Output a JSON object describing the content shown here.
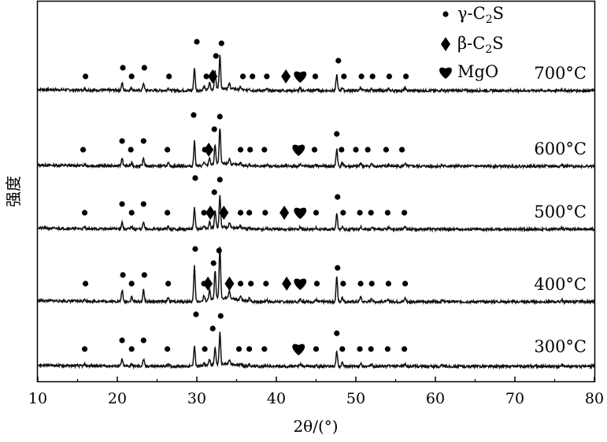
{
  "chart_data": {
    "type": "line",
    "xlabel": "2θ/(°)",
    "ylabel": "强度",
    "xlim": [
      10,
      80
    ],
    "xticks": [
      10,
      20,
      30,
      40,
      50,
      60,
      70,
      80
    ],
    "grid": false,
    "legend_position": "top-right",
    "legend": [
      {
        "label": "γ-C2S",
        "label_main": "γ-C",
        "label_sub": "2",
        "label_tail": "S",
        "marker": "circle"
      },
      {
        "label": "β-C2S",
        "label_main": "β-C",
        "label_sub": "2",
        "label_tail": "S",
        "marker": "diamond"
      },
      {
        "label": "MgO",
        "label_main": "MgO",
        "label_sub": "",
        "label_tail": "",
        "marker": "heart"
      }
    ],
    "peaks": [
      {
        "pos": 15.9,
        "h": 0.05
      },
      {
        "pos": 20.6,
        "h": 0.22
      },
      {
        "pos": 21.8,
        "h": 0.08
      },
      {
        "pos": 23.3,
        "h": 0.22
      },
      {
        "pos": 26.4,
        "h": 0.08
      },
      {
        "pos": 29.7,
        "h": 0.68
      },
      {
        "pos": 30.9,
        "h": 0.1
      },
      {
        "pos": 31.6,
        "h": 0.2
      },
      {
        "pos": 32.3,
        "h": 0.55
      },
      {
        "pos": 32.9,
        "h": 1.0
      },
      {
        "pos": 34.1,
        "h": 0.15
      },
      {
        "pos": 35.5,
        "h": 0.08
      },
      {
        "pos": 36.6,
        "h": 0.06
      },
      {
        "pos": 38.8,
        "h": 0.04
      },
      {
        "pos": 43.0,
        "h": 0.07
      },
      {
        "pos": 45.0,
        "h": 0.04
      },
      {
        "pos": 47.6,
        "h": 0.48
      },
      {
        "pos": 48.3,
        "h": 0.1
      },
      {
        "pos": 50.6,
        "h": 0.1
      },
      {
        "pos": 52.0,
        "h": 0.07
      },
      {
        "pos": 54.1,
        "h": 0.05
      },
      {
        "pos": 56.2,
        "h": 0.08
      },
      {
        "pos": 60.8,
        "h": 0.03
      },
      {
        "pos": 75.9,
        "h": 0.04
      }
    ],
    "series": [
      {
        "name": "700°C",
        "amp": 42,
        "seed": 7,
        "markers": [
          {
            "type": "circle",
            "x": 16.0
          },
          {
            "type": "circle",
            "x": 20.7
          },
          {
            "type": "circle",
            "x": 21.8
          },
          {
            "type": "circle",
            "x": 23.4
          },
          {
            "type": "circle",
            "x": 26.5
          },
          {
            "type": "circle",
            "x": 30.0
          },
          {
            "type": "circle",
            "x": 31.2
          },
          {
            "type": "diamond",
            "x": 32.0
          },
          {
            "type": "circle",
            "x": 32.4
          },
          {
            "type": "circle",
            "x": 33.1
          },
          {
            "type": "circle",
            "x": 35.8
          },
          {
            "type": "circle",
            "x": 37.0
          },
          {
            "type": "circle",
            "x": 38.8
          },
          {
            "type": "diamond",
            "x": 41.2
          },
          {
            "type": "heart",
            "x": 43.0
          },
          {
            "type": "circle",
            "x": 44.9
          },
          {
            "type": "circle",
            "x": 47.8
          },
          {
            "type": "circle",
            "x": 48.5
          },
          {
            "type": "circle",
            "x": 50.7
          },
          {
            "type": "circle",
            "x": 52.1
          },
          {
            "type": "circle",
            "x": 54.2
          },
          {
            "type": "circle",
            "x": 56.3
          }
        ]
      },
      {
        "name": "600°C",
        "amp": 46,
        "seed": 13,
        "markers": [
          {
            "type": "circle",
            "x": 15.7
          },
          {
            "type": "circle",
            "x": 20.6
          },
          {
            "type": "circle",
            "x": 21.7
          },
          {
            "type": "circle",
            "x": 23.3
          },
          {
            "type": "circle",
            "x": 26.3
          },
          {
            "type": "circle",
            "x": 29.6
          },
          {
            "type": "circle",
            "x": 31.0
          },
          {
            "type": "diamond",
            "x": 31.5
          },
          {
            "type": "circle",
            "x": 32.2
          },
          {
            "type": "circle",
            "x": 32.9
          },
          {
            "type": "circle",
            "x": 35.5
          },
          {
            "type": "circle",
            "x": 36.7
          },
          {
            "type": "circle",
            "x": 38.5
          },
          {
            "type": "heart",
            "x": 42.8
          },
          {
            "type": "circle",
            "x": 44.8
          },
          {
            "type": "circle",
            "x": 47.6
          },
          {
            "type": "circle",
            "x": 48.2
          },
          {
            "type": "circle",
            "x": 50.0
          },
          {
            "type": "circle",
            "x": 51.5
          },
          {
            "type": "circle",
            "x": 53.8
          },
          {
            "type": "circle",
            "x": 55.8
          }
        ]
      },
      {
        "name": "500°C",
        "amp": 40,
        "seed": 21,
        "markers": [
          {
            "type": "circle",
            "x": 15.9
          },
          {
            "type": "circle",
            "x": 20.6
          },
          {
            "type": "circle",
            "x": 21.8
          },
          {
            "type": "circle",
            "x": 23.3
          },
          {
            "type": "circle",
            "x": 26.3
          },
          {
            "type": "circle",
            "x": 29.8
          },
          {
            "type": "circle",
            "x": 30.9
          },
          {
            "type": "diamond",
            "x": 31.7
          },
          {
            "type": "circle",
            "x": 32.2
          },
          {
            "type": "circle",
            "x": 32.9
          },
          {
            "type": "diamond",
            "x": 33.4
          },
          {
            "type": "circle",
            "x": 35.5
          },
          {
            "type": "circle",
            "x": 36.6
          },
          {
            "type": "circle",
            "x": 38.6
          },
          {
            "type": "diamond",
            "x": 41.0
          },
          {
            "type": "heart",
            "x": 43.0
          },
          {
            "type": "circle",
            "x": 45.0
          },
          {
            "type": "circle",
            "x": 47.7
          },
          {
            "type": "circle",
            "x": 48.4
          },
          {
            "type": "circle",
            "x": 50.5
          },
          {
            "type": "circle",
            "x": 51.9
          },
          {
            "type": "circle",
            "x": 54.0
          },
          {
            "type": "circle",
            "x": 56.1
          }
        ]
      },
      {
        "name": "400°C",
        "amp": 66,
        "seed": 33,
        "markers": [
          {
            "type": "circle",
            "x": 16.0
          },
          {
            "type": "circle",
            "x": 20.7
          },
          {
            "type": "circle",
            "x": 21.8
          },
          {
            "type": "circle",
            "x": 23.4
          },
          {
            "type": "circle",
            "x": 26.4
          },
          {
            "type": "circle",
            "x": 29.8
          },
          {
            "type": "circle",
            "x": 30.9
          },
          {
            "type": "diamond",
            "x": 31.4
          },
          {
            "type": "circle",
            "x": 32.1
          },
          {
            "type": "circle",
            "x": 32.8
          },
          {
            "type": "diamond",
            "x": 34.1
          },
          {
            "type": "circle",
            "x": 35.5
          },
          {
            "type": "circle",
            "x": 36.8
          },
          {
            "type": "circle",
            "x": 38.7
          },
          {
            "type": "diamond",
            "x": 41.3
          },
          {
            "type": "heart",
            "x": 43.0
          },
          {
            "type": "circle",
            "x": 45.1
          },
          {
            "type": "circle",
            "x": 47.7
          },
          {
            "type": "circle",
            "x": 48.4
          },
          {
            "type": "circle",
            "x": 50.6
          },
          {
            "type": "circle",
            "x": 52.0
          },
          {
            "type": "circle",
            "x": 54.1
          },
          {
            "type": "circle",
            "x": 56.2
          }
        ]
      },
      {
        "name": "300°C",
        "amp": 40,
        "seed": 45,
        "markers": [
          {
            "type": "circle",
            "x": 15.9
          },
          {
            "type": "circle",
            "x": 20.6
          },
          {
            "type": "circle",
            "x": 21.8
          },
          {
            "type": "circle",
            "x": 23.3
          },
          {
            "type": "circle",
            "x": 26.3
          },
          {
            "type": "circle",
            "x": 29.9
          },
          {
            "type": "circle",
            "x": 31.0
          },
          {
            "type": "circle",
            "x": 32.0
          },
          {
            "type": "circle",
            "x": 33.0
          },
          {
            "type": "circle",
            "x": 35.3
          },
          {
            "type": "circle",
            "x": 36.6
          },
          {
            "type": "circle",
            "x": 38.5
          },
          {
            "type": "heart",
            "x": 42.8
          },
          {
            "type": "circle",
            "x": 45.0
          },
          {
            "type": "circle",
            "x": 47.6
          },
          {
            "type": "circle",
            "x": 48.3
          },
          {
            "type": "circle",
            "x": 50.5
          },
          {
            "type": "circle",
            "x": 51.9
          },
          {
            "type": "circle",
            "x": 54.0
          },
          {
            "type": "circle",
            "x": 56.1
          }
        ]
      }
    ]
  }
}
